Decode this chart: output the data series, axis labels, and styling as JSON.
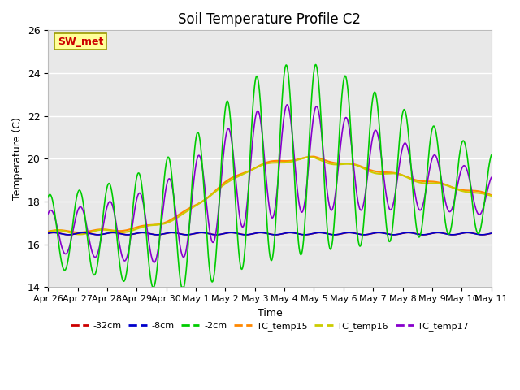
{
  "title": "Soil Temperature Profile C2",
  "xlabel": "Time",
  "ylabel": "Temperature (C)",
  "ylim": [
    14,
    26
  ],
  "background_color": "#e8e8e8",
  "annotation_text": "SW_met",
  "annotation_color": "#cc0000",
  "annotation_bg": "#ffff99",
  "annotation_border": "#999900",
  "xtick_labels": [
    "Apr 26",
    "Apr 27",
    "Apr 28",
    "Apr 29",
    "Apr 30",
    "May 1",
    "May 2",
    "May 3",
    "May 4",
    "May 5",
    "May 6",
    "May 7",
    "May 8",
    "May 9",
    "May 10",
    "May 11"
  ],
  "colors": {
    "m32cm": "#cc0000",
    "m8cm": "#0000cc",
    "m2cm": "#00cc00",
    "TC_temp15": "#ff8800",
    "TC_temp16": "#cccc00",
    "TC_temp17": "#8800cc"
  },
  "linewidth": 1.2,
  "yticks": [
    14,
    16,
    18,
    20,
    22,
    24,
    26
  ]
}
